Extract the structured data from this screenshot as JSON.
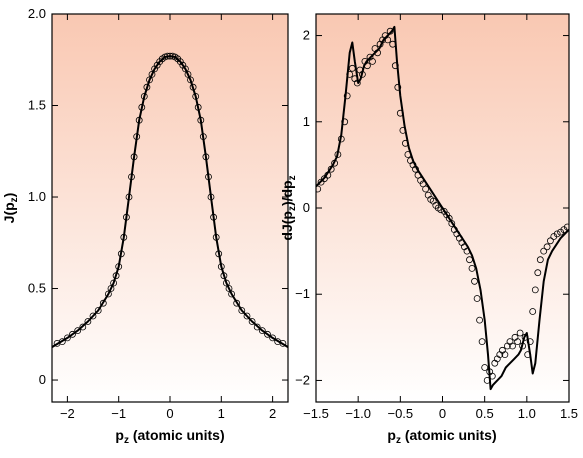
{
  "colors": {
    "background_top": "#f9c8b2",
    "background_bottom": "#ffffff",
    "curve": "#000000",
    "marker": "#000000"
  },
  "chart_data": [
    {
      "type": "line",
      "panel": "left",
      "xlabel_main": "p",
      "xlabel_sub": "z",
      "xlabel_rest": " (atomic units)",
      "ylabel_main": "J(p",
      "ylabel_sub": "z",
      "ylabel_rest": ")",
      "xlim": [
        -2.3,
        2.3
      ],
      "ylim": [
        -0.12,
        2.0
      ],
      "xticks": [
        -2,
        -1,
        0,
        1,
        2
      ],
      "xtick_labels": [
        "−2",
        "−1",
        "0",
        "1",
        "2"
      ],
      "yticks": [
        0,
        0.5,
        1.0,
        1.5,
        2.0
      ],
      "ytick_labels": [
        "0",
        "0.5",
        "1.0",
        "1.5",
        "2.0"
      ],
      "series": [
        {
          "kind": "theory-line",
          "x": [
            -2.3,
            -2.0,
            -1.8,
            -1.6,
            -1.4,
            -1.2,
            -1.1,
            -1.0,
            -0.9,
            -0.8,
            -0.7,
            -0.6,
            -0.5,
            -0.4,
            -0.3,
            -0.2,
            -0.1,
            0.0,
            0.1,
            0.2,
            0.3,
            0.4,
            0.5,
            0.6,
            0.7,
            0.8,
            0.9,
            1.0,
            1.1,
            1.2,
            1.4,
            1.6,
            1.8,
            2.0,
            2.3
          ],
          "y": [
            0.18,
            0.23,
            0.27,
            0.32,
            0.38,
            0.47,
            0.53,
            0.62,
            0.78,
            1.0,
            1.22,
            1.42,
            1.55,
            1.64,
            1.7,
            1.74,
            1.765,
            1.77,
            1.765,
            1.74,
            1.7,
            1.64,
            1.55,
            1.42,
            1.22,
            1.0,
            0.78,
            0.62,
            0.53,
            0.47,
            0.38,
            0.32,
            0.27,
            0.23,
            0.18
          ]
        },
        {
          "kind": "experiment-markers",
          "x": [
            -2.2,
            -2.1,
            -2.0,
            -1.9,
            -1.8,
            -1.7,
            -1.6,
            -1.5,
            -1.4,
            -1.3,
            -1.2,
            -1.15,
            -1.1,
            -1.05,
            -1.0,
            -0.95,
            -0.9,
            -0.85,
            -0.8,
            -0.75,
            -0.7,
            -0.65,
            -0.6,
            -0.55,
            -0.5,
            -0.45,
            -0.4,
            -0.35,
            -0.3,
            -0.25,
            -0.2,
            -0.15,
            -0.1,
            -0.05,
            0.0,
            0.05,
            0.1,
            0.15,
            0.2,
            0.25,
            0.3,
            0.35,
            0.4,
            0.45,
            0.5,
            0.55,
            0.6,
            0.65,
            0.7,
            0.75,
            0.8,
            0.85,
            0.9,
            0.95,
            1.0,
            1.05,
            1.1,
            1.15,
            1.2,
            1.3,
            1.4,
            1.5,
            1.6,
            1.7,
            1.8,
            1.9,
            2.0,
            2.1,
            2.2
          ],
          "y": [
            0.2,
            0.21,
            0.23,
            0.25,
            0.27,
            0.29,
            0.32,
            0.35,
            0.38,
            0.42,
            0.47,
            0.5,
            0.53,
            0.57,
            0.62,
            0.69,
            0.78,
            0.89,
            1.0,
            1.11,
            1.22,
            1.33,
            1.42,
            1.49,
            1.55,
            1.6,
            1.64,
            1.67,
            1.7,
            1.72,
            1.74,
            1.755,
            1.765,
            1.77,
            1.77,
            1.77,
            1.765,
            1.755,
            1.74,
            1.72,
            1.7,
            1.67,
            1.64,
            1.6,
            1.55,
            1.49,
            1.42,
            1.33,
            1.22,
            1.11,
            1.0,
            0.89,
            0.78,
            0.69,
            0.62,
            0.57,
            0.53,
            0.5,
            0.47,
            0.42,
            0.38,
            0.35,
            0.32,
            0.29,
            0.27,
            0.25,
            0.23,
            0.21,
            0.2
          ]
        }
      ]
    },
    {
      "type": "line",
      "panel": "right",
      "xlabel_main": "p",
      "xlabel_sub": "z",
      "xlabel_rest": " (atomic units)",
      "ylabel_main": "dJ(p",
      "ylabel_sub": "z",
      "ylabel_rest": ")/dp",
      "ylabel_sub2": "z",
      "xlim": [
        -1.5,
        1.5
      ],
      "ylim": [
        -2.25,
        2.25
      ],
      "xticks": [
        -1.5,
        -1.0,
        -0.5,
        0,
        0.5,
        1.0,
        1.5
      ],
      "xtick_labels": [
        "−1.5",
        "−1.0",
        "−0.5",
        "0",
        "0.5",
        "1.0",
        "1.5"
      ],
      "yticks": [
        -2,
        -1,
        0,
        1,
        2
      ],
      "ytick_labels": [
        "−2",
        "−1",
        "0",
        "1",
        "2"
      ],
      "series": [
        {
          "kind": "theory-line",
          "x": [
            -1.5,
            -1.4,
            -1.3,
            -1.25,
            -1.2,
            -1.15,
            -1.1,
            -1.07,
            -1.04,
            -1.0,
            -0.97,
            -0.93,
            -0.9,
            -0.85,
            -0.8,
            -0.75,
            -0.7,
            -0.65,
            -0.6,
            -0.57,
            -0.54,
            -0.5,
            -0.45,
            -0.4,
            -0.35,
            -0.3,
            -0.2,
            -0.1,
            0.0,
            0.1,
            0.2,
            0.3,
            0.35,
            0.4,
            0.45,
            0.5,
            0.54,
            0.57,
            0.6,
            0.65,
            0.7,
            0.75,
            0.8,
            0.85,
            0.9,
            0.93,
            0.97,
            1.0,
            1.04,
            1.07,
            1.1,
            1.15,
            1.2,
            1.25,
            1.3,
            1.4,
            1.5
          ],
          "y": [
            0.25,
            0.35,
            0.5,
            0.6,
            0.85,
            1.3,
            1.8,
            1.92,
            1.7,
            1.45,
            1.5,
            1.65,
            1.7,
            1.75,
            1.8,
            1.85,
            1.95,
            2.0,
            2.05,
            2.1,
            1.7,
            1.3,
            0.95,
            0.7,
            0.55,
            0.45,
            0.3,
            0.15,
            0.0,
            -0.15,
            -0.3,
            -0.45,
            -0.55,
            -0.7,
            -0.95,
            -1.3,
            -1.7,
            -2.1,
            -2.05,
            -2.0,
            -1.95,
            -1.85,
            -1.8,
            -1.75,
            -1.7,
            -1.65,
            -1.5,
            -1.45,
            -1.7,
            -1.92,
            -1.8,
            -1.3,
            -0.85,
            -0.6,
            -0.5,
            -0.35,
            -0.25
          ]
        },
        {
          "kind": "experiment-markers",
          "x": [
            -1.48,
            -1.44,
            -1.4,
            -1.36,
            -1.32,
            -1.28,
            -1.24,
            -1.2,
            -1.16,
            -1.13,
            -1.1,
            -1.07,
            -1.04,
            -1.01,
            -0.98,
            -0.95,
            -0.92,
            -0.89,
            -0.86,
            -0.83,
            -0.8,
            -0.77,
            -0.74,
            -0.71,
            -0.68,
            -0.65,
            -0.62,
            -0.59,
            -0.56,
            -0.53,
            -0.5,
            -0.47,
            -0.44,
            -0.41,
            -0.38,
            -0.35,
            -0.32,
            -0.29,
            -0.26,
            -0.23,
            -0.2,
            -0.17,
            -0.14,
            -0.11,
            -0.08,
            -0.05,
            -0.02,
            0.02,
            0.05,
            0.08,
            0.11,
            0.14,
            0.17,
            0.2,
            0.23,
            0.26,
            0.29,
            0.32,
            0.35,
            0.38,
            0.41,
            0.44,
            0.47,
            0.5,
            0.53,
            0.56,
            0.59,
            0.62,
            0.65,
            0.68,
            0.71,
            0.74,
            0.77,
            0.8,
            0.83,
            0.86,
            0.89,
            0.92,
            0.95,
            0.98,
            1.01,
            1.04,
            1.07,
            1.1,
            1.13,
            1.16,
            1.2,
            1.24,
            1.28,
            1.32,
            1.36,
            1.4,
            1.44,
            1.48
          ],
          "y": [
            0.22,
            0.3,
            0.34,
            0.38,
            0.45,
            0.52,
            0.62,
            0.8,
            1.0,
            1.3,
            1.55,
            1.62,
            1.5,
            1.45,
            1.6,
            1.55,
            1.7,
            1.65,
            1.75,
            1.7,
            1.85,
            1.8,
            1.9,
            1.95,
            2.0,
            1.95,
            2.05,
            1.9,
            1.65,
            1.4,
            1.1,
            0.9,
            0.75,
            0.62,
            0.55,
            0.5,
            0.45,
            0.38,
            0.32,
            0.28,
            0.22,
            0.15,
            0.1,
            0.08,
            0.03,
            0.0,
            -0.02,
            -0.04,
            -0.08,
            -0.12,
            -0.18,
            -0.25,
            -0.3,
            -0.35,
            -0.4,
            -0.45,
            -0.5,
            -0.6,
            -0.7,
            -0.85,
            -1.05,
            -1.3,
            -1.55,
            -1.85,
            -2.0,
            -1.9,
            -1.95,
            -1.8,
            -1.75,
            -1.7,
            -1.65,
            -1.7,
            -1.6,
            -1.55,
            -1.6,
            -1.5,
            -1.55,
            -1.45,
            -1.6,
            -1.5,
            -1.7,
            -1.55,
            -1.2,
            -0.95,
            -0.75,
            -0.6,
            -0.5,
            -0.45,
            -0.38,
            -0.33,
            -0.3,
            -0.28,
            -0.25,
            -0.22
          ]
        }
      ]
    }
  ]
}
